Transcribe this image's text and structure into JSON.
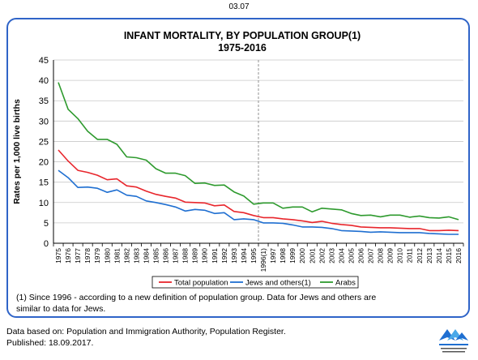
{
  "page_number": "03.07",
  "chart_data": {
    "type": "line",
    "title": "INFANT MORTALITY, BY POPULATION GROUP(1)",
    "subtitle": "1975-2016",
    "ylabel": "Rates per 1,000 live births",
    "xlabel": "",
    "ylim": [
      0,
      45
    ],
    "yticks": [
      0,
      5,
      10,
      15,
      20,
      25,
      30,
      35,
      40,
      45
    ],
    "grid": true,
    "legend_position": "bottom",
    "categories": [
      "1975",
      "1976",
      "1977",
      "1978",
      "1979",
      "1980",
      "1981",
      "1982",
      "1983",
      "1984",
      "1985",
      "1986",
      "1987",
      "1988",
      "1989",
      "1990",
      "1991",
      "1992",
      "1993",
      "1994",
      "1995",
      "1996(1)",
      "1997",
      "1998",
      "1999",
      "2000",
      "2001",
      "2002",
      "2003",
      "2004",
      "2005",
      "2006",
      "2007",
      "2008",
      "2009",
      "2010",
      "2011",
      "2012",
      "2013",
      "2014",
      "2015",
      "2016"
    ],
    "divider_at": "1996(1)",
    "series": [
      {
        "name": "Total population",
        "color": "#e8262c",
        "values": [
          22.9,
          20.2,
          17.9,
          17.4,
          16.7,
          15.6,
          15.8,
          14.1,
          13.8,
          12.8,
          12.0,
          11.5,
          11.1,
          10.1,
          10.0,
          9.9,
          9.2,
          9.4,
          7.8,
          7.5,
          6.8,
          6.3,
          6.3,
          6.0,
          5.8,
          5.5,
          5.1,
          5.4,
          4.9,
          4.6,
          4.4,
          4.0,
          3.9,
          3.8,
          3.8,
          3.7,
          3.6,
          3.6,
          3.1,
          3.1,
          3.2,
          3.1
        ]
      },
      {
        "name": "Jews and others(1)",
        "color": "#1f6fd1",
        "values": [
          17.9,
          16.1,
          13.7,
          13.8,
          13.5,
          12.5,
          13.1,
          11.8,
          11.5,
          10.4,
          10.0,
          9.5,
          8.9,
          7.9,
          8.3,
          8.1,
          7.3,
          7.5,
          5.8,
          6.0,
          5.8,
          5.0,
          5.0,
          4.9,
          4.5,
          4.0,
          4.0,
          3.9,
          3.6,
          3.1,
          3.0,
          2.9,
          2.7,
          2.8,
          2.7,
          2.6,
          2.6,
          2.6,
          2.4,
          2.3,
          2.2,
          2.2
        ]
      },
      {
        "name": "Arabs",
        "color": "#2e9a2e",
        "values": [
          39.5,
          32.9,
          30.6,
          27.5,
          25.5,
          25.5,
          24.3,
          21.2,
          21.0,
          20.4,
          18.3,
          17.2,
          17.2,
          16.6,
          14.7,
          14.8,
          14.2,
          14.3,
          12.6,
          11.6,
          9.6,
          9.9,
          9.9,
          8.6,
          8.9,
          8.9,
          7.7,
          8.6,
          8.4,
          8.2,
          7.3,
          6.8,
          6.9,
          6.5,
          6.9,
          6.9,
          6.4,
          6.7,
          6.3,
          6.2,
          6.5,
          5.8
        ]
      }
    ],
    "footnote": "(1) Since 1996 - according to a new definition of population group. Data for Jews and others are similar to data for Jews."
  },
  "source": {
    "line1": "Data based on: Population and Immigration Authority, Population Register.",
    "line2": "Published: 18.09.2017."
  },
  "logo": {
    "icon": "cbs-logo-icon",
    "colors": [
      "#1f6fd1",
      "#4aa8e8"
    ]
  }
}
